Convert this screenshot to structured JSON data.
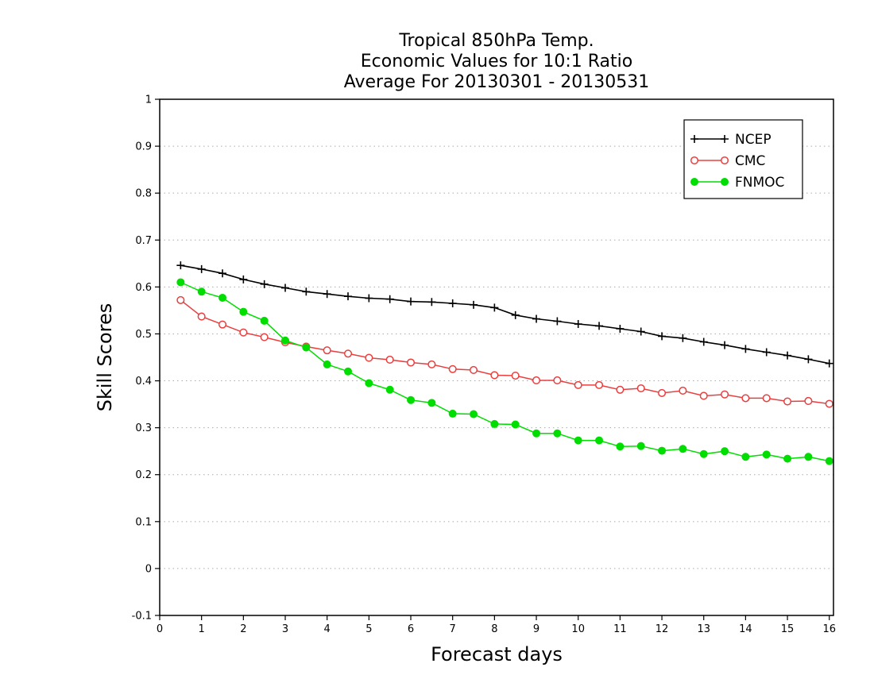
{
  "chart_data": {
    "type": "line",
    "title_lines": [
      "Tropical 850hPa Temp.",
      "Economic Values for 10:1 Ratio",
      "Average For 20130301 - 20130531"
    ],
    "xlabel": "Forecast days",
    "ylabel": "Skill Scores",
    "xlim": [
      0,
      16.1
    ],
    "ylim": [
      -0.1,
      1
    ],
    "xticks": [
      0,
      1,
      2,
      3,
      4,
      5,
      6,
      7,
      8,
      9,
      10,
      11,
      12,
      13,
      14,
      15,
      16
    ],
    "xtick_labels": [
      "0",
      "1",
      "2",
      "3",
      "4",
      "5",
      "6",
      "7",
      "8",
      "9",
      "10",
      "11",
      "12",
      "13",
      "14",
      "15",
      "16"
    ],
    "yticks": [
      -0.1,
      0,
      0.1,
      0.2,
      0.3,
      0.4,
      0.5,
      0.6,
      0.7,
      0.8,
      0.9,
      1
    ],
    "ytick_labels": [
      "-0.1",
      "0",
      "0.1",
      "0.2",
      "0.3",
      "0.4",
      "0.5",
      "0.6",
      "0.7",
      "0.8",
      "0.9",
      "1"
    ],
    "grid": "horizontal dotted",
    "legend_position": "top-right",
    "x": [
      0.5,
      1,
      1.5,
      2,
      2.5,
      3,
      3.5,
      4,
      4.5,
      5,
      5.5,
      6,
      6.5,
      7,
      7.5,
      8,
      8.5,
      9,
      9.5,
      10,
      10.5,
      11,
      11.5,
      12,
      12.5,
      13,
      13.5,
      14,
      14.5,
      15,
      15.5,
      16
    ],
    "series": [
      {
        "name": "NCEP",
        "color": "#000000",
        "marker": "plus",
        "values": [
          0.646,
          0.638,
          0.629,
          0.616,
          0.606,
          0.598,
          0.59,
          0.585,
          0.58,
          0.576,
          0.574,
          0.569,
          0.568,
          0.565,
          0.562,
          0.556,
          0.54,
          0.532,
          0.527,
          0.521,
          0.517,
          0.511,
          0.505,
          0.495,
          0.491,
          0.483,
          0.476,
          0.468,
          0.461,
          0.454,
          0.446,
          0.437
        ]
      },
      {
        "name": "CMC",
        "color": "#e84040",
        "marker": "open-circle",
        "values": [
          0.572,
          0.537,
          0.52,
          0.503,
          0.493,
          0.482,
          0.473,
          0.465,
          0.458,
          0.449,
          0.445,
          0.439,
          0.435,
          0.425,
          0.423,
          0.412,
          0.411,
          0.401,
          0.401,
          0.391,
          0.391,
          0.381,
          0.384,
          0.374,
          0.379,
          0.368,
          0.371,
          0.363,
          0.363,
          0.356,
          0.357,
          0.351
        ]
      },
      {
        "name": "FNMOC",
        "color": "#00dd00",
        "marker": "filled-circle",
        "values": [
          0.61,
          0.59,
          0.577,
          0.547,
          0.528,
          0.486,
          0.471,
          0.435,
          0.42,
          0.395,
          0.381,
          0.359,
          0.353,
          0.33,
          0.329,
          0.308,
          0.307,
          0.288,
          0.288,
          0.273,
          0.273,
          0.26,
          0.261,
          0.251,
          0.255,
          0.244,
          0.25,
          0.238,
          0.243,
          0.234,
          0.238,
          0.229
        ]
      }
    ]
  }
}
